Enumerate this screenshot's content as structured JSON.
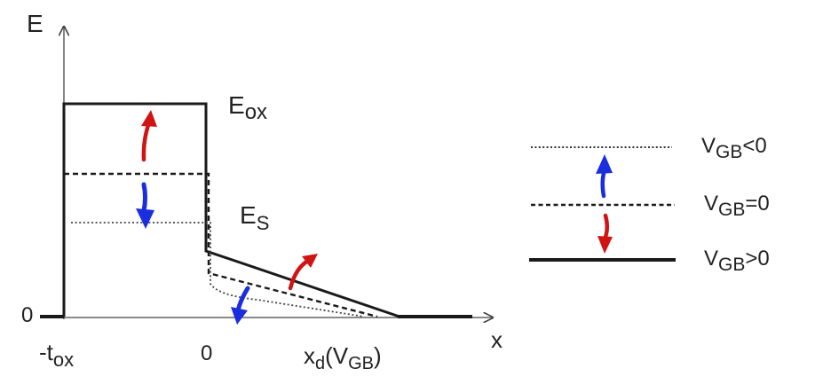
{
  "axes": {
    "y_label": "E",
    "x_label": "x",
    "y_zero": "0",
    "tick_tox_prefix": "-t",
    "tick_tox_sub": "ox",
    "tick_zero": "0",
    "tick_xd_main": "x",
    "tick_xd_sub": "d",
    "tick_xd_paren": "(V",
    "tick_xd_paren_sub": "GB",
    "tick_xd_close": ")"
  },
  "labels": {
    "eox_main": "E",
    "eox_sub": "ox",
    "es_main": "E",
    "es_sub": "S"
  },
  "legend": {
    "items": [
      {
        "main": "V",
        "sub": "GB",
        "rel": "<0",
        "style": "dotted"
      },
      {
        "main": "V",
        "sub": "GB",
        "rel": "=0",
        "style": "dashed"
      },
      {
        "main": "V",
        "sub": "GB",
        "rel": ">0",
        "style": "solid"
      }
    ]
  },
  "colors": {
    "line": "#1a1a1a",
    "arrow_up": "#d01414",
    "arrow_down": "#1a2ee0"
  }
}
